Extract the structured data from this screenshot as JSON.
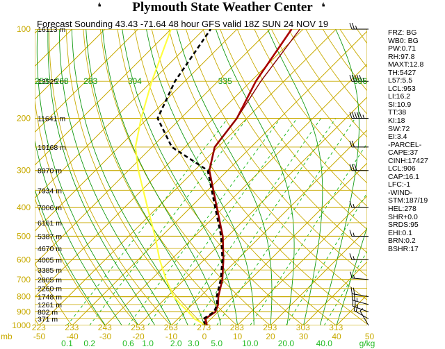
{
  "header": {
    "title": "Plymouth State Weather Center",
    "flag_glyph": "❛"
  },
  "subtitle": "Forecast Sounding 43.43 -71.64 48 hour GFS valid 18Z SUN 24 NOV 19",
  "colors": {
    "isobar": "#c8aa00",
    "isotherm": "#c8aa00",
    "dry_adiabat": "#c8aa00",
    "moist_adiabat": "#119911",
    "mixing_ratio": "#22bb22",
    "temperature": "#aa0000",
    "dewpoint": "#000000",
    "parcel": "#880000",
    "wet_bulb": "#ffff40"
  },
  "chart_data": {
    "type": "line",
    "title": "Forecast Sounding 43.43 -71.64 48 hour GFS valid 18Z SUN 24 NOV 19",
    "xlabel": "mb",
    "ylim_pressure": [
      1000,
      100
    ],
    "xlim_temp": [
      -50,
      50
    ],
    "pressure_ticks": [
      "100",
      "200",
      "300",
      "400",
      "500",
      "600",
      "700",
      "800",
      "900",
      "1000"
    ],
    "temp_ticks": [
      "-50",
      "-40",
      "-30",
      "-20",
      "-10",
      "0",
      "10",
      "20",
      "30",
      "40",
      "50"
    ],
    "mixing_ratio_labels": [
      "0.1",
      "0.2",
      "0.6",
      "1.0",
      "2.0",
      "3.0",
      "5.0",
      "10.0",
      "20.0",
      "40.0",
      "g/kg"
    ],
    "theta_labels_bottom": [
      "223",
      "233",
      "243",
      "253",
      "263",
      "273",
      "283",
      "293",
      "303",
      "313"
    ],
    "theta_labels_top": [
      "253",
      "268",
      "283",
      "304",
      "335",
      "386"
    ],
    "height_labels": [
      {
        "p": 100,
        "label": "16113 m"
      },
      {
        "p": 150,
        "label": "13525 m"
      },
      {
        "p": 200,
        "label": "11641 m"
      },
      {
        "p": 250,
        "label": "10168 m"
      },
      {
        "p": 300,
        "label": "8970 m"
      },
      {
        "p": 350,
        "label": "7934 m"
      },
      {
        "p": 400,
        "label": "7006 m"
      },
      {
        "p": 450,
        "label": "6161 m"
      },
      {
        "p": 500,
        "label": "5387 m"
      },
      {
        "p": 550,
        "label": "4670 m"
      },
      {
        "p": 600,
        "label": "4005 m"
      },
      {
        "p": 650,
        "label": "3385 m"
      },
      {
        "p": 700,
        "label": "2805 m"
      },
      {
        "p": 750,
        "label": "2260 m"
      },
      {
        "p": 800,
        "label": "1748 m"
      },
      {
        "p": 850,
        "label": "1261 m"
      },
      {
        "p": 900,
        "label": "802 m"
      },
      {
        "p": 950,
        "label": "371 m"
      }
    ],
    "series": [
      {
        "name": "Temperature",
        "p": [
          1000,
          950,
          900,
          850,
          800,
          700,
          600,
          500,
          400,
          300,
          250,
          200,
          150,
          100
        ],
        "t": [
          0.8,
          -1.8,
          -0.8,
          -2.2,
          -4.5,
          -8.5,
          -14.2,
          -21.5,
          -32.0,
          -45.5,
          -51.0,
          -53.0,
          -58.5,
          -63.5
        ]
      },
      {
        "name": "Dewpoint",
        "p": [
          1000,
          950,
          900,
          850,
          800,
          700,
          600,
          500,
          400,
          300,
          250,
          200,
          150,
          100
        ],
        "t": [
          0.2,
          -2.3,
          -1.2,
          -2.5,
          -5.0,
          -9.0,
          -14.5,
          -22.0,
          -32.5,
          -46.0,
          -64.0,
          -77.0,
          -83.0,
          -88.0
        ]
      },
      {
        "name": "Parcel",
        "p": [
          1000,
          950,
          900,
          850,
          800,
          700,
          600,
          500,
          400,
          300,
          250,
          200,
          150,
          100
        ],
        "t": [
          0.8,
          -1.5,
          -0.8,
          -2.2,
          -4.5,
          -8.5,
          -14.2,
          -21.5,
          -32.0,
          -45.5,
          -51.0,
          -53.0,
          -57.0,
          -61.0
        ]
      },
      {
        "name": "Wet Bulb",
        "p": [
          1000,
          950,
          900,
          850,
          800,
          700,
          600,
          500,
          400,
          300,
          250,
          200,
          150,
          100
        ],
        "t": [
          0.5,
          -5.0,
          -9.0,
          -13.5,
          -18.0,
          -25.5,
          -33.5,
          -42.0,
          -53.0,
          -67.0,
          -75.0,
          -82.0,
          -90.0,
          -100.0
        ]
      }
    ],
    "winds": [
      {
        "p": 1000,
        "dir": 330,
        "kt": 5
      },
      {
        "p": 950,
        "dir": 300,
        "kt": 20
      },
      {
        "p": 900,
        "dir": 290,
        "kt": 25
      },
      {
        "p": 850,
        "dir": 285,
        "kt": 25
      },
      {
        "p": 800,
        "dir": 280,
        "kt": 20
      },
      {
        "p": 700,
        "dir": 275,
        "kt": 15
      },
      {
        "p": 600,
        "dir": 270,
        "kt": 15
      },
      {
        "p": 500,
        "dir": 270,
        "kt": 15
      },
      {
        "p": 400,
        "dir": 270,
        "kt": 15
      },
      {
        "p": 300,
        "dir": 270,
        "kt": 30
      },
      {
        "p": 250,
        "dir": 270,
        "kt": 20
      },
      {
        "p": 200,
        "dir": 270,
        "kt": 55
      },
      {
        "p": 150,
        "dir": 270,
        "kt": 55
      },
      {
        "p": 100,
        "dir": 270,
        "kt": 25
      }
    ]
  },
  "indices": [
    "FRZ: BG",
    "WB0: BG",
    "PW:0.71",
    "RH:97.8",
    "MAXT:12.8",
    "TH:5427",
    "L57:5.5",
    "LCL:953",
    "LI:16.2",
    "SI:10.9",
    "TT:38",
    "KI:18",
    "SW:72",
    "EI:3.4",
    "-PARCEL-",
    "CAPE:37",
    "CINH:17427",
    "LCL:906",
    "CAP:16.1",
    "LFC:-1",
    "-WIND-",
    "STM:187/19",
    "HEL:278",
    "SHR+0.0",
    "SRDS:95",
    "EHI:0.1",
    "BRN:0.2",
    "BSHR:17"
  ]
}
